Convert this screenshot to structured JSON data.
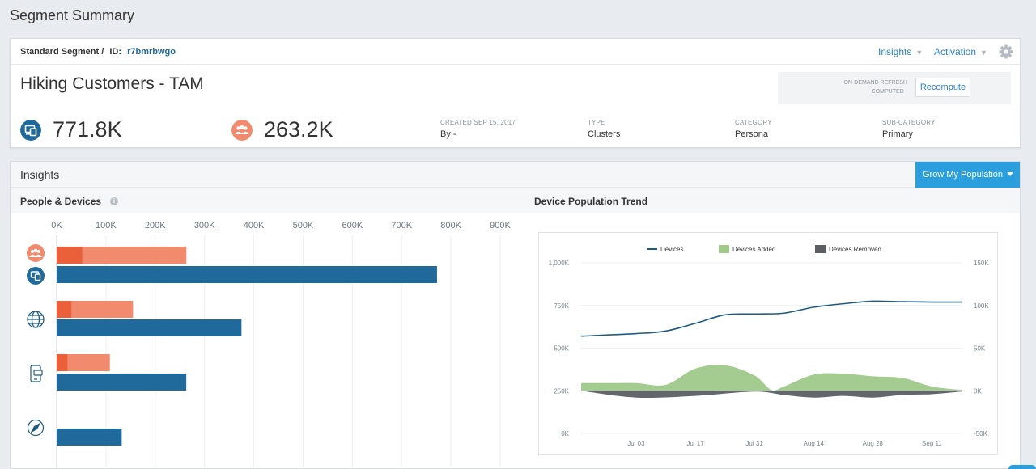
{
  "page": {
    "title": "Segment Summary"
  },
  "segment": {
    "breadcrumb_type": "Standard Segment /",
    "id_label": "ID:",
    "id": "r7bmrbwgo",
    "name": "Hiking Customers - TAM"
  },
  "nav": {
    "insights": "Insights",
    "activation": "Activation"
  },
  "refresh": {
    "line1": "ON-DEMAND REFRESH",
    "line2": "COMPUTED -",
    "button": "Recompute"
  },
  "stats": {
    "devices": "771.8K",
    "people": "263.2K"
  },
  "meta": [
    {
      "key": "CREATED SEP 15, 2017",
      "value": "By -"
    },
    {
      "key": "TYPE",
      "value": "Clusters"
    },
    {
      "key": "CATEGORY",
      "value": "Persona"
    },
    {
      "key": "SUB-CATEGORY",
      "value": "Primary"
    }
  ],
  "insights": {
    "title": "Insights",
    "grow_button": "Grow My Population"
  },
  "colors": {
    "accent": "#2b9ede",
    "people": "#f28b6e",
    "people_dark": "#e9603a",
    "devices": "#1f6a9a",
    "added": "#a0c98a",
    "removed": "#5b5f63",
    "line": "#1f5a80"
  },
  "chart_data": [
    {
      "type": "bar",
      "title": "People & Devices",
      "xticks": [
        "0K",
        "100K",
        "200K",
        "300K",
        "400K",
        "500K",
        "600K",
        "700K",
        "800K",
        "900K"
      ],
      "xlim": [
        0,
        900000
      ],
      "categories": [
        {
          "icon": "people-devices-icon",
          "people_total": 263200,
          "people_highlight": 52000,
          "devices": 771800
        },
        {
          "icon": "globe-icon",
          "people_total": 155000,
          "people_highlight": 30000,
          "devices": 375000
        },
        {
          "icon": "mobile-app-icon",
          "people_total": 108000,
          "people_highlight": 22000,
          "devices": 263000
        },
        {
          "icon": "compass-icon",
          "people_total": 0,
          "people_highlight": 0,
          "devices": 132000
        }
      ]
    },
    {
      "type": "line",
      "title": "Device Population Trend",
      "legend": [
        "Devices",
        "Devices Added",
        "Devices Removed"
      ],
      "xticks": [
        "Jul 03",
        "Jul 17",
        "Jul 31",
        "Aug 14",
        "Aug 28",
        "Sep 11"
      ],
      "yticks_left": [
        "0K",
        "250K",
        "500K",
        "750K",
        "1,000K"
      ],
      "yticks_right": [
        "-50K",
        "0K",
        "50K",
        "100K",
        "150K"
      ],
      "ylim_left": [
        0,
        1000000
      ],
      "ylim_right": [
        -50000,
        150000
      ],
      "xlim": [
        "Jun 20",
        "Sep 18"
      ],
      "devices": [
        [
          "Jun 20",
          570000
        ],
        [
          "Jul 03",
          585000
        ],
        [
          "Jul 10",
          600000
        ],
        [
          "Jul 17",
          645000
        ],
        [
          "Jul 24",
          695000
        ],
        [
          "Jul 31",
          700000
        ],
        [
          "Aug 07",
          705000
        ],
        [
          "Aug 14",
          740000
        ],
        [
          "Aug 21",
          760000
        ],
        [
          "Aug 28",
          775000
        ],
        [
          "Sep 04",
          772000
        ],
        [
          "Sep 11",
          770000
        ],
        [
          "Sep 18",
          770000
        ]
      ],
      "added": [
        [
          "Jun 20",
          9000
        ],
        [
          "Jun 27",
          9000
        ],
        [
          "Jul 03",
          9000
        ],
        [
          "Jul 10",
          7000
        ],
        [
          "Jul 17",
          26000
        ],
        [
          "Jul 24",
          30000
        ],
        [
          "Jul 31",
          18000
        ],
        [
          "Aug 04",
          1000
        ],
        [
          "Aug 07",
          5000
        ],
        [
          "Aug 14",
          19000
        ],
        [
          "Aug 21",
          20000
        ],
        [
          "Aug 28",
          17000
        ],
        [
          "Sep 04",
          15000
        ],
        [
          "Sep 11",
          5000
        ],
        [
          "Sep 18",
          1000
        ]
      ],
      "removed": [
        [
          "Jun 20",
          0
        ],
        [
          "Jul 03",
          -8000
        ],
        [
          "Jul 17",
          -6000
        ],
        [
          "Jul 31",
          -1000
        ],
        [
          "Aug 07",
          -5000
        ],
        [
          "Aug 14",
          -8000
        ],
        [
          "Aug 21",
          -6000
        ],
        [
          "Aug 28",
          -8000
        ],
        [
          "Sep 04",
          -5000
        ],
        [
          "Sep 11",
          -4000
        ],
        [
          "Sep 18",
          -1000
        ]
      ]
    }
  ]
}
